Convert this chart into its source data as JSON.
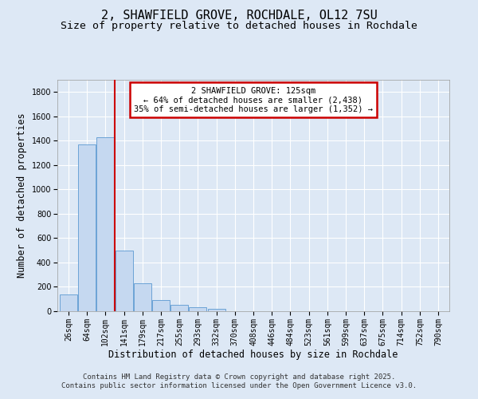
{
  "title1": "2, SHAWFIELD GROVE, ROCHDALE, OL12 7SU",
  "title2": "Size of property relative to detached houses in Rochdale",
  "xlabel": "Distribution of detached houses by size in Rochdale",
  "ylabel": "Number of detached properties",
  "categories": [
    "26sqm",
    "64sqm",
    "102sqm",
    "141sqm",
    "179sqm",
    "217sqm",
    "255sqm",
    "293sqm",
    "332sqm",
    "370sqm",
    "408sqm",
    "446sqm",
    "484sqm",
    "523sqm",
    "561sqm",
    "599sqm",
    "637sqm",
    "675sqm",
    "714sqm",
    "752sqm",
    "790sqm"
  ],
  "values": [
    140,
    1370,
    1430,
    500,
    230,
    90,
    55,
    30,
    20,
    0,
    0,
    0,
    0,
    0,
    0,
    0,
    0,
    0,
    0,
    0,
    0
  ],
  "bar_color": "#c5d8f0",
  "bar_edge_color": "#6ba3d6",
  "vline_x_index": 2.5,
  "vline_color": "#cc0000",
  "annotation_text": "2 SHAWFIELD GROVE: 125sqm\n← 64% of detached houses are smaller (2,438)\n35% of semi-detached houses are larger (1,352) →",
  "annotation_box_color": "#cc0000",
  "ylim": [
    0,
    1900
  ],
  "yticks": [
    0,
    200,
    400,
    600,
    800,
    1000,
    1200,
    1400,
    1600,
    1800
  ],
  "background_color": "#dde8f5",
  "plot_bg_color": "#dde8f5",
  "footer1": "Contains HM Land Registry data © Crown copyright and database right 2025.",
  "footer2": "Contains public sector information licensed under the Open Government Licence v3.0.",
  "grid_color": "#ffffff",
  "title_fontsize": 11,
  "subtitle_fontsize": 9.5,
  "tick_fontsize": 7,
  "label_fontsize": 8.5,
  "footer_fontsize": 6.5
}
